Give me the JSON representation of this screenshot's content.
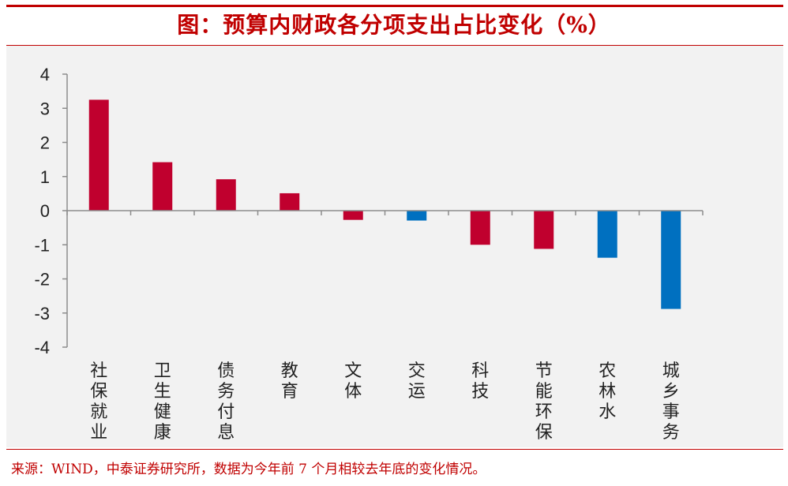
{
  "header": {
    "title": "图：预算内财政各分项支出占比变化（%）"
  },
  "footer": {
    "source": "来源：WIND，中泰证券研究所，数据为今年前 7 个月相较去年底的变化情况。"
  },
  "colors": {
    "accent": "#c00000",
    "positive_bar": "#c0002e",
    "negative_highlight_bar": "#0070c0"
  },
  "chart_data": {
    "type": "bar",
    "title": "图：预算内财政各分项支出占比变化（%）",
    "xlabel": "",
    "ylabel": "",
    "ylim": [
      -4,
      4
    ],
    "yticks": [
      4,
      3,
      2,
      1,
      0,
      -1,
      -2,
      -3,
      -4
    ],
    "grid": false,
    "legend": "none",
    "categories": [
      "社保就业",
      "卫生健康",
      "债务付息",
      "教育",
      "文体",
      "交运",
      "科技",
      "节能环保",
      "农林水",
      "城乡事务"
    ],
    "values": [
      3.25,
      1.42,
      0.92,
      0.51,
      -0.27,
      -0.29,
      -1.0,
      -1.12,
      -1.38,
      -2.88
    ],
    "bar_colors": [
      "#c0002e",
      "#c0002e",
      "#c0002e",
      "#c0002e",
      "#c0002e",
      "#0070c0",
      "#c0002e",
      "#c0002e",
      "#0070c0",
      "#0070c0"
    ]
  }
}
